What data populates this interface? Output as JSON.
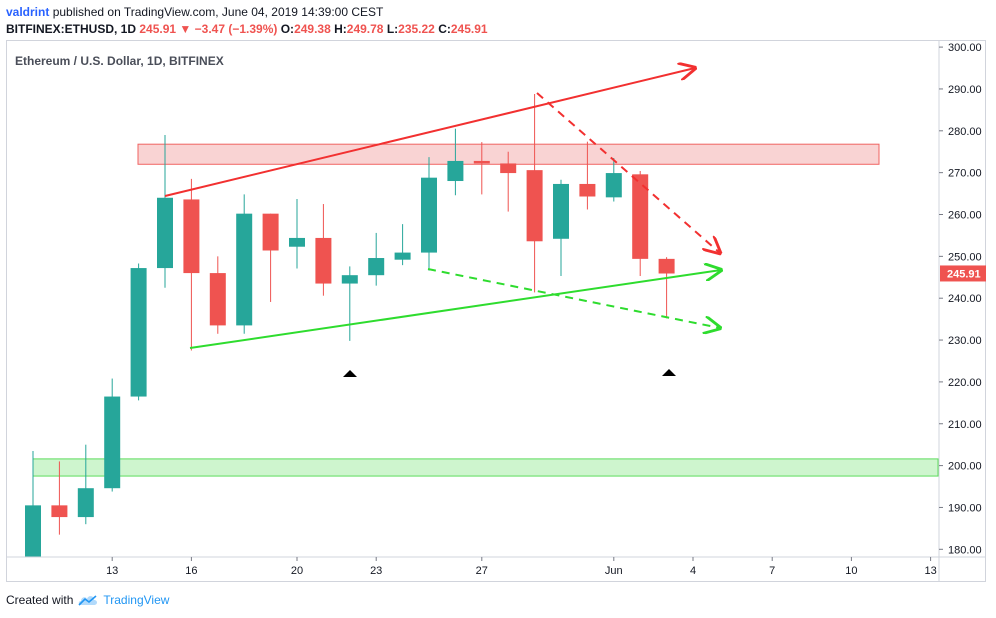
{
  "header": {
    "author": "valdrint",
    "published_text": "published on TradingView.com, June 04, 2019 14:39:00 CEST",
    "symbol": "BITFINEX:ETHUSD, 1D",
    "last": "245.91",
    "change": "−3.47 (−1.39%)",
    "o_label": "O:",
    "o_value": "249.38",
    "h_label": "H:",
    "h_value": "249.78",
    "l_label": "L:",
    "l_value": "235.22",
    "c_label": "C:",
    "c_value": "245.91"
  },
  "footer": {
    "created_with": "Created with",
    "brand": "TradingView"
  },
  "chart_data": {
    "type": "candlestick",
    "title": "Ethereum / U.S. Dollar, 1D, BITFINEX",
    "price_label": "245.91",
    "y_ticks": [
      "180.00",
      "190.00",
      "200.00",
      "210.00",
      "220.00",
      "230.00",
      "240.00",
      "250.00",
      "260.00",
      "270.00",
      "280.00",
      "290.00",
      "300.00"
    ],
    "ylim": [
      178,
      302
    ],
    "x_ticks": [
      {
        "label": "13",
        "day": 3
      },
      {
        "label": "16",
        "day": 6
      },
      {
        "label": "20",
        "day": 10
      },
      {
        "label": "23",
        "day": 13
      },
      {
        "label": "27",
        "day": 17
      },
      {
        "label": "Jun",
        "day": 22
      },
      {
        "label": "4",
        "day": 25
      },
      {
        "label": "7",
        "day": 28
      },
      {
        "label": "10",
        "day": 31
      },
      {
        "label": "13",
        "day": 34
      }
    ],
    "candles": [
      {
        "o": 178.0,
        "h": 203.5,
        "l": 177.0,
        "c": 190.5
      },
      {
        "o": 190.5,
        "h": 201.0,
        "l": 183.5,
        "c": 187.7
      },
      {
        "o": 187.7,
        "h": 205.0,
        "l": 186.0,
        "c": 194.6
      },
      {
        "o": 194.6,
        "h": 220.8,
        "l": 193.8,
        "c": 216.5
      },
      {
        "o": 216.5,
        "h": 248.3,
        "l": 215.6,
        "c": 247.2
      },
      {
        "o": 247.2,
        "h": 279.0,
        "l": 242.5,
        "c": 264.0
      },
      {
        "o": 263.6,
        "h": 268.5,
        "l": 227.5,
        "c": 246.0
      },
      {
        "o": 246.0,
        "h": 250.0,
        "l": 231.5,
        "c": 233.5
      },
      {
        "o": 233.5,
        "h": 264.8,
        "l": 231.5,
        "c": 260.2
      },
      {
        "o": 260.2,
        "h": 260.2,
        "l": 239.1,
        "c": 251.4
      },
      {
        "o": 252.3,
        "h": 263.7,
        "l": 247.1,
        "c": 254.4
      },
      {
        "o": 254.4,
        "h": 262.5,
        "l": 240.6,
        "c": 243.5
      },
      {
        "o": 243.5,
        "h": 247.6,
        "l": 229.8,
        "c": 245.5
      },
      {
        "o": 245.5,
        "h": 255.6,
        "l": 243.0,
        "c": 249.6
      },
      {
        "o": 249.2,
        "h": 257.7,
        "l": 247.9,
        "c": 250.9
      },
      {
        "o": 250.9,
        "h": 273.7,
        "l": 246.6,
        "c": 268.8
      },
      {
        "o": 268.0,
        "h": 280.5,
        "l": 264.6,
        "c": 272.8
      },
      {
        "o": 272.8,
        "h": 277.3,
        "l": 264.8,
        "c": 272.2
      },
      {
        "o": 272.2,
        "h": 275.0,
        "l": 260.7,
        "c": 269.9
      },
      {
        "o": 270.6,
        "h": 288.8,
        "l": 241.4,
        "c": 253.6
      },
      {
        "o": 254.2,
        "h": 268.3,
        "l": 245.3,
        "c": 267.3
      },
      {
        "o": 267.3,
        "h": 277.4,
        "l": 261.2,
        "c": 264.3
      },
      {
        "o": 264.1,
        "h": 273.5,
        "l": 263.1,
        "c": 269.9
      },
      {
        "o": 269.6,
        "h": 270.4,
        "l": 245.3,
        "c": 249.4
      },
      {
        "o": 249.4,
        "h": 249.8,
        "l": 235.2,
        "c": 245.9
      }
    ],
    "resistance_zone": [
      272.0,
      276.8
    ],
    "support_zone": [
      197.5,
      201.6
    ],
    "colors": {
      "up": "#26a69a",
      "down": "#ef5350",
      "resistance_fill": "#f9cfcf",
      "resistance_stroke": "#ef5350",
      "support_fill": "#c9f5c9",
      "support_stroke": "#4cd94c",
      "red_line": "#f23030",
      "green_line": "#2edc2e",
      "text": "#131722",
      "grid": "#d1d4dc"
    }
  }
}
